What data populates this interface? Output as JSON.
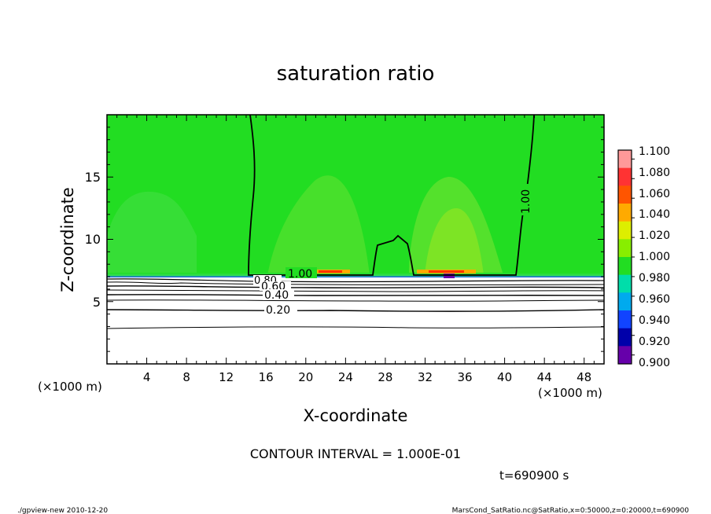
{
  "chart_data": {
    "type": "heatmap",
    "title": "saturation ratio",
    "xlabel": "X-coordinate",
    "ylabel": "Z-coordinate",
    "x_unit": "(×1000 m)",
    "z_unit": "(×1000 m)",
    "xlim": [
      0,
      50
    ],
    "ylim": [
      0,
      20
    ],
    "x_ticks": [
      "4",
      "8",
      "12",
      "16",
      "20",
      "24",
      "28",
      "32",
      "36",
      "40",
      "44",
      "48"
    ],
    "y_ticks": [
      "5",
      "10",
      "15"
    ],
    "colorbar": {
      "ticks": [
        "1.100",
        "1.080",
        "1.060",
        "1.040",
        "1.020",
        "1.000",
        "0.980",
        "0.960",
        "0.940",
        "0.920",
        "0.900"
      ],
      "colors": [
        "#ff9999",
        "#ff3333",
        "#ff5500",
        "#ffaa00",
        "#ddee00",
        "#88ee00",
        "#22dd22",
        "#00ddaa",
        "#00aaee",
        "#1144ff",
        "#0000aa",
        "#6600aa"
      ]
    },
    "contour_labels": [
      "1.00",
      "0.80",
      "0.60",
      "0.40",
      "0.20",
      "1.00"
    ],
    "contour_interval_text": "CONTOUR INTERVAL = 1.000E-01",
    "time_text": "t=690900 s",
    "footer_left": "./gpview-new  2010-12-20",
    "footer_right": "MarsCond_SatRatio.nc@SatRatio,x=0:50000,z=0:20000,t=690900"
  }
}
